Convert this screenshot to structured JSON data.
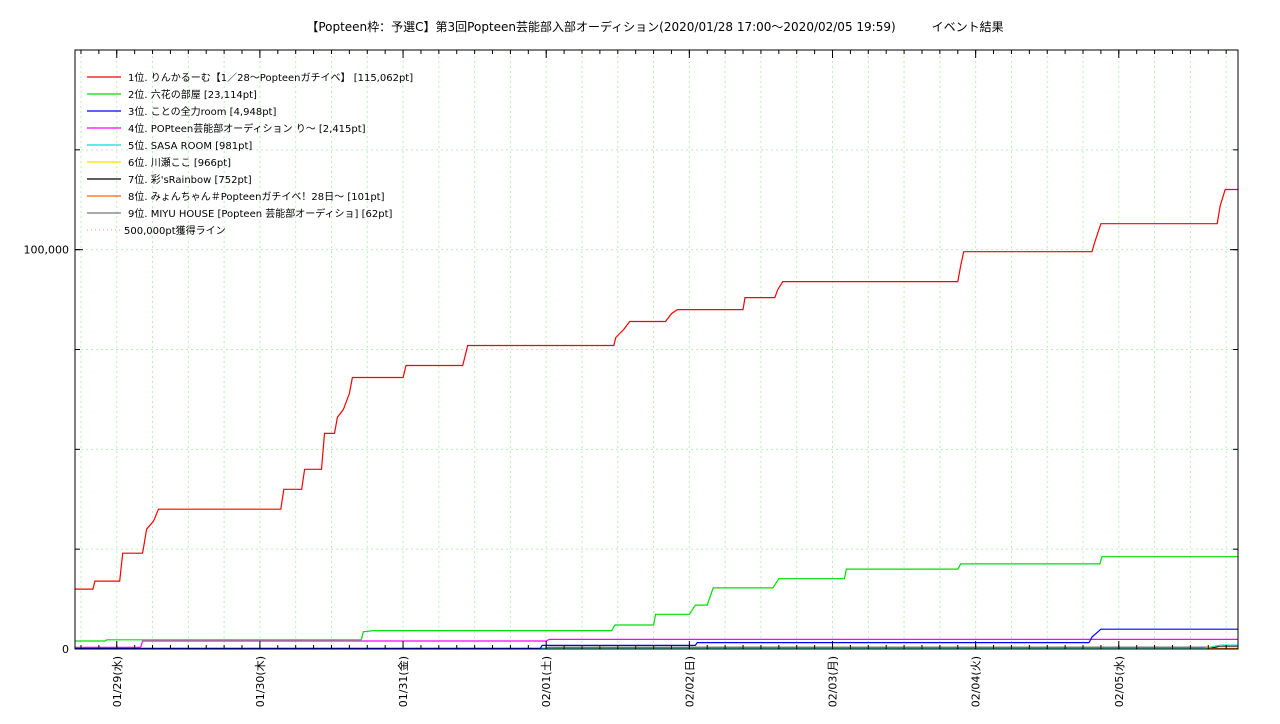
{
  "chart_data": {
    "type": "line",
    "title": "【Popteen枠：予選C】第3回Popteen芸能部入部オーディション(2020/01/28 17:00〜2020/02/05 19:59)　　　イベント結果",
    "xlabel": "",
    "ylabel": "",
    "x_range": [
      "2020-01-28T17:00",
      "2020-02-05T19:59"
    ],
    "ylim": [
      0,
      150000
    ],
    "y_ticks": [
      {
        "value": 0,
        "label": "0"
      },
      {
        "value": 100000,
        "label": "100,000"
      }
    ],
    "x_ticks": [
      {
        "date": "2020-01-29",
        "label": "01/29(水)"
      },
      {
        "date": "2020-01-30",
        "label": "01/30(木)"
      },
      {
        "date": "2020-01-31",
        "label": "01/31(金)"
      },
      {
        "date": "2020-02-01",
        "label": "02/01(土)"
      },
      {
        "date": "2020-02-02",
        "label": "02/02(日)"
      },
      {
        "date": "2020-02-03",
        "label": "02/03(月)"
      },
      {
        "date": "2020-02-04",
        "label": "02/04(火)"
      },
      {
        "date": "2020-02-05",
        "label": "02/05(水)"
      }
    ],
    "grid": true,
    "legend_position": "top-left",
    "series": [
      {
        "name": "1位. りんかるーむ【1／28〜Popteenガチイベ】 [115,062pt]",
        "color": "#ff0000",
        "points": [
          [
            "2020-01-28T17:00",
            15000
          ],
          [
            "2020-01-28T20:00",
            15000
          ],
          [
            "2020-01-28T20:20",
            17000
          ],
          [
            "2020-01-29T00:30",
            17000
          ],
          [
            "2020-01-29T01:00",
            24000
          ],
          [
            "2020-01-29T04:20",
            24000
          ],
          [
            "2020-01-29T05:00",
            30000
          ],
          [
            "2020-01-29T06:10",
            32000
          ],
          [
            "2020-01-29T07:00",
            35000
          ],
          [
            "2020-01-30T03:30",
            35000
          ],
          [
            "2020-01-30T04:00",
            40000
          ],
          [
            "2020-01-30T07:00",
            40000
          ],
          [
            "2020-01-30T07:30",
            45000
          ],
          [
            "2020-01-30T10:20",
            45000
          ],
          [
            "2020-01-30T10:50",
            54000
          ],
          [
            "2020-01-30T12:30",
            54000
          ],
          [
            "2020-01-30T13:00",
            58000
          ],
          [
            "2020-01-30T14:00",
            60000
          ],
          [
            "2020-01-30T15:00",
            64000
          ],
          [
            "2020-01-30T15:30",
            68000
          ],
          [
            "2020-01-31T00:00",
            68000
          ],
          [
            "2020-01-31T00:30",
            71000
          ],
          [
            "2020-01-31T10:00",
            71000
          ],
          [
            "2020-01-31T10:20",
            73000
          ],
          [
            "2020-01-31T10:50",
            76000
          ],
          [
            "2020-02-01T11:20",
            76000
          ],
          [
            "2020-02-01T11:40",
            78000
          ],
          [
            "2020-02-01T13:00",
            80000
          ],
          [
            "2020-02-01T14:00",
            82000
          ],
          [
            "2020-02-01T20:00",
            82000
          ],
          [
            "2020-02-01T21:00",
            84000
          ],
          [
            "2020-02-01T22:00",
            85000
          ],
          [
            "2020-02-02T09:00",
            85000
          ],
          [
            "2020-02-02T09:20",
            88000
          ],
          [
            "2020-02-02T14:20",
            88000
          ],
          [
            "2020-02-02T14:50",
            90000
          ],
          [
            "2020-02-02T15:40",
            92000
          ],
          [
            "2020-02-03T21:00",
            92000
          ],
          [
            "2020-02-03T21:30",
            96000
          ],
          [
            "2020-02-03T22:00",
            99500
          ],
          [
            "2020-02-04T19:30",
            99500
          ],
          [
            "2020-02-04T20:00",
            102000
          ],
          [
            "2020-02-04T21:00",
            106500
          ],
          [
            "2020-02-05T16:30",
            106500
          ],
          [
            "2020-02-05T17:00",
            111000
          ],
          [
            "2020-02-05T17:50",
            115062
          ],
          [
            "2020-02-05T19:59",
            115062
          ]
        ]
      },
      {
        "name": "2位. 六花の部屋 [23,114pt]",
        "color": "#00dd00",
        "points": [
          [
            "2020-01-28T17:00",
            2000
          ],
          [
            "2020-01-28T22:00",
            2000
          ],
          [
            "2020-01-28T22:20",
            2300
          ],
          [
            "2020-01-30T17:00",
            2300
          ],
          [
            "2020-01-30T17:20",
            4300
          ],
          [
            "2020-01-30T19:00",
            4600
          ],
          [
            "2020-02-01T11:00",
            4600
          ],
          [
            "2020-02-01T11:30",
            6000
          ],
          [
            "2020-02-01T18:00",
            6000
          ],
          [
            "2020-02-01T18:20",
            8700
          ],
          [
            "2020-02-02T00:00",
            8700
          ],
          [
            "2020-02-02T01:00",
            11000
          ],
          [
            "2020-02-02T03:00",
            11000
          ],
          [
            "2020-02-02T04:00",
            15300
          ],
          [
            "2020-02-02T14:00",
            15300
          ],
          [
            "2020-02-02T15:00",
            17600
          ],
          [
            "2020-02-03T02:00",
            17600
          ],
          [
            "2020-02-03T02:20",
            20000
          ],
          [
            "2020-02-03T21:00",
            20000
          ],
          [
            "2020-02-03T21:30",
            21300
          ],
          [
            "2020-02-04T20:50",
            21300
          ],
          [
            "2020-02-04T21:10",
            23114
          ],
          [
            "2020-02-05T19:59",
            23114
          ]
        ]
      },
      {
        "name": "3位. ことの全力room [4,948pt]",
        "color": "#0000ff",
        "points": [
          [
            "2020-01-28T17:00",
            0
          ],
          [
            "2020-01-31T23:00",
            0
          ],
          [
            "2020-01-31T23:20",
            900
          ],
          [
            "2020-02-02T01:00",
            900
          ],
          [
            "2020-02-02T01:20",
            1600
          ],
          [
            "2020-02-04T19:00",
            1600
          ],
          [
            "2020-02-04T19:30",
            3000
          ],
          [
            "2020-02-04T21:00",
            4948
          ],
          [
            "2020-02-05T19:59",
            4948
          ]
        ]
      },
      {
        "name": "4位. POPteen芸能部オーディション り〜 [2,415pt]",
        "color": "#ff00ff",
        "points": [
          [
            "2020-01-28T17:00",
            400
          ],
          [
            "2020-01-29T04:00",
            400
          ],
          [
            "2020-01-29T04:20",
            2000
          ],
          [
            "2020-02-01T00:00",
            2000
          ],
          [
            "2020-02-01T00:30",
            2415
          ],
          [
            "2020-02-05T19:59",
            2415
          ]
        ]
      },
      {
        "name": "5位. SASA ROOM [981pt]",
        "color": "#00dddd",
        "points": [
          [
            "2020-01-28T17:00",
            0
          ],
          [
            "2020-02-01T00:00",
            0
          ],
          [
            "2020-02-01T00:20",
            300
          ],
          [
            "2020-02-05T15:00",
            300
          ],
          [
            "2020-02-05T17:00",
            981
          ],
          [
            "2020-02-05T19:59",
            981
          ]
        ]
      },
      {
        "name": "6位. 川瀬ここ [966pt]",
        "color": "#ffdd00",
        "points": [
          [
            "2020-01-28T17:00",
            0
          ],
          [
            "2020-02-05T14:00",
            0
          ],
          [
            "2020-02-05T16:00",
            700
          ],
          [
            "2020-02-05T17:30",
            966
          ],
          [
            "2020-02-05T19:59",
            966
          ]
        ]
      },
      {
        "name": "7位. 彩'sRainbow [752pt]",
        "color": "#000000",
        "points": [
          [
            "2020-01-28T17:00",
            0
          ],
          [
            "2020-02-01T00:00",
            0
          ],
          [
            "2020-02-01T00:20",
            400
          ],
          [
            "2020-02-05T16:00",
            400
          ],
          [
            "2020-02-05T17:00",
            752
          ],
          [
            "2020-02-05T19:59",
            752
          ]
        ]
      },
      {
        "name": "8位. みょんちゃん＃Popteenガチイベ！28日〜 [101pt]",
        "color": "#ff6600",
        "points": [
          [
            "2020-01-28T17:00",
            0
          ],
          [
            "2020-02-03T10:00",
            0
          ],
          [
            "2020-02-03T10:20",
            101
          ],
          [
            "2020-02-05T19:59",
            101
          ]
        ]
      },
      {
        "name": "9位. MIYU HOUSE [Popteen 芸能部オーディショ] [62pt]",
        "color": "#777777",
        "points": [
          [
            "2020-01-28T17:00",
            0
          ],
          [
            "2020-02-04T09:00",
            0
          ],
          [
            "2020-02-04T09:20",
            62
          ],
          [
            "2020-02-05T19:59",
            62
          ]
        ]
      },
      {
        "name": "500,000pt獲得ライン",
        "color": "#ffaaaa",
        "dotted": true,
        "value": 500000
      }
    ]
  }
}
